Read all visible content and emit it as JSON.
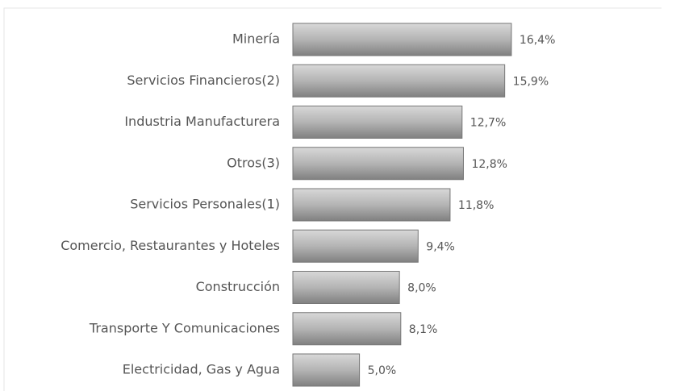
{
  "chart_data": {
    "type": "bar",
    "orientation": "horizontal",
    "categories": [
      "Minería",
      "Servicios Financieros(2)",
      "Industria Manufacturera",
      "Otros(3)",
      "Servicios Personales(1)",
      "Comercio, Restaurantes y Hoteles",
      "Construcción",
      "Transporte Y Comunicaciones",
      "Electricidad, Gas y Agua"
    ],
    "values": [
      16.4,
      15.9,
      12.7,
      12.8,
      11.8,
      9.4,
      8.0,
      8.1,
      5.0
    ],
    "value_labels": [
      "16,4%",
      "15,9%",
      "12,7%",
      "12,8%",
      "11,8%",
      "9,4%",
      "8,0%",
      "8,1%",
      "5,0%"
    ],
    "color": "#a8a8a8"
  }
}
